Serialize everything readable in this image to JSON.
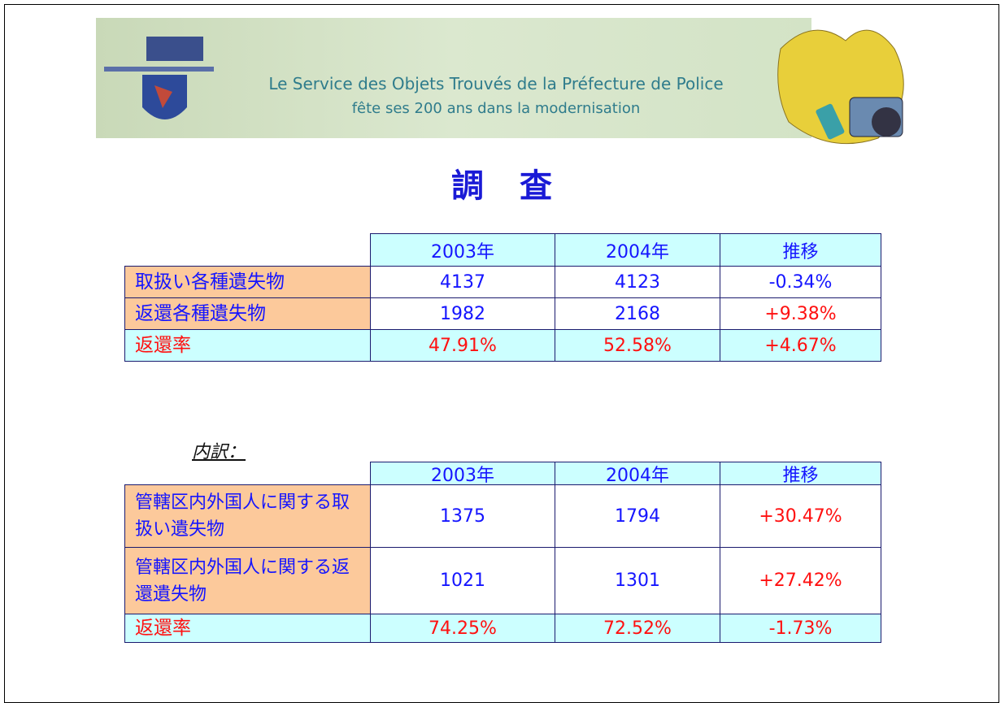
{
  "banner": {
    "lines": [
      "Le Service des Objets Trouvés de la Préfecture de Police",
      "fête ses 200 ans dans la modernisation"
    ]
  },
  "title": "調　査",
  "table1": {
    "columns": [
      "2003年",
      "2004年",
      "推移"
    ],
    "rows": [
      {
        "label": "取扱い各種遺失物",
        "cells": [
          "4137",
          "4123",
          "-0.34%"
        ]
      },
      {
        "label": "返還各種遺失物",
        "cells": [
          "1982",
          "2168",
          "+9.38%"
        ]
      },
      {
        "label": "返還率",
        "cells": [
          "47.91%",
          "52.58%",
          "+4.67%"
        ]
      }
    ]
  },
  "breakdown_label": "内訳：",
  "table2": {
    "columns": [
      "2003年",
      "2004年",
      "推移"
    ],
    "rows": [
      {
        "label": "管轄区内外国人に関する取扱い遺失物",
        "cells": [
          "1375",
          "1794",
          "+30.47%"
        ]
      },
      {
        "label": "管轄区内外国人に関する返還遺失物",
        "cells": [
          "1021",
          "1301",
          "+27.42%"
        ]
      },
      {
        "label": "返還率",
        "cells": [
          "74.25%",
          "72.52%",
          "-1.73%"
        ]
      }
    ]
  }
}
